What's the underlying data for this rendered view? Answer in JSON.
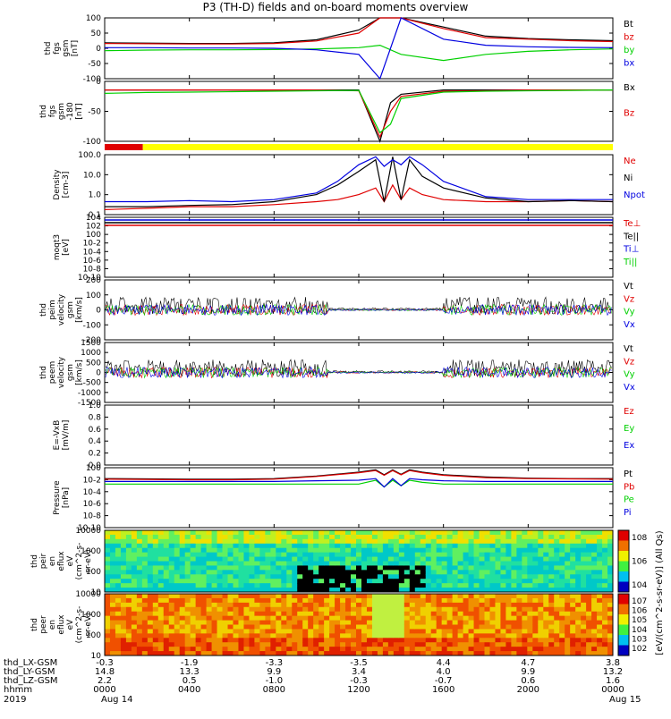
{
  "title": "P3 (TH-D) fields and on-board moments overview",
  "colors": {
    "black": "#000000",
    "red": "#e00000",
    "green": "#00d000",
    "blue": "#0000e0",
    "yellow": "#ffff00"
  },
  "chart_data": [
    {
      "type": "line",
      "panel": "fgs_gsm",
      "ylabel": [
        "thd",
        "fgs",
        "gsm",
        "[nT]"
      ],
      "ylim": [
        -100,
        100
      ],
      "yticks": [
        "100",
        "50",
        "0",
        "-50",
        "-100"
      ],
      "series": [
        {
          "name": "Bt",
          "color": "black"
        },
        {
          "name": "bz",
          "color": "red"
        },
        {
          "name": "by",
          "color": "green"
        },
        {
          "name": "bx",
          "color": "blue"
        }
      ],
      "x_hours": [
        0,
        2,
        4,
        6,
        8,
        10,
        12,
        13,
        14,
        16,
        18,
        20,
        22,
        24
      ],
      "values": {
        "Bt": [
          18,
          17,
          16,
          16,
          18,
          28,
          60,
          100,
          100,
          70,
          40,
          32,
          28,
          25
        ],
        "bz": [
          16,
          15,
          14,
          14,
          16,
          24,
          50,
          100,
          100,
          65,
          35,
          30,
          25,
          22
        ],
        "by": [
          -8,
          -6,
          -5,
          -5,
          -4,
          -2,
          2,
          10,
          -20,
          -40,
          -20,
          -10,
          -5,
          -2
        ],
        "bx": [
          2,
          2,
          1,
          1,
          0,
          -5,
          -20,
          -100,
          100,
          30,
          10,
          5,
          3,
          2
        ]
      }
    },
    {
      "type": "line",
      "panel": "fgs_gsm_b",
      "ylabel": [
        "thd",
        "fgs",
        "gsm",
        "-180",
        "[nT]"
      ],
      "ylim": [
        -120,
        20
      ],
      "yticks": [
        "0",
        "-50",
        "-100"
      ],
      "series": [
        {
          "name": "Bx",
          "color": "black"
        },
        {
          "name": "Bz",
          "color": "red"
        }
      ],
      "x_hours": [
        0,
        2,
        4,
        6,
        8,
        10,
        12,
        13,
        13.5,
        14,
        16,
        18,
        20,
        22,
        24
      ],
      "values": {
        "Bx": [
          0,
          0,
          0,
          0,
          0,
          0,
          0,
          -120,
          -30,
          -10,
          0,
          0,
          0,
          0,
          0
        ],
        "Bz": [
          0,
          0,
          0,
          0,
          0,
          0,
          -2,
          -110,
          -50,
          -15,
          -3,
          -2,
          0,
          0,
          0
        ],
        "green": [
          -8,
          -6,
          -5,
          -4,
          -3,
          -2,
          -1,
          -100,
          -80,
          -20,
          -5,
          -3,
          -2,
          -1,
          0
        ]
      }
    },
    {
      "type": "bar",
      "panel": "mode_bar",
      "segments": [
        {
          "from": 0,
          "to": 1.8,
          "color": "red"
        },
        {
          "from": 1.8,
          "to": 24,
          "color": "yellow"
        }
      ]
    },
    {
      "type": "line",
      "panel": "density",
      "ylabel": [
        "Density",
        "[cm-3]"
      ],
      "yscale": "log",
      "ylim": [
        0.05,
        200
      ],
      "yticks": [
        "100.0",
        "10.0",
        "1.0",
        "0.1"
      ],
      "series": [
        {
          "name": "Ne",
          "color": "red"
        },
        {
          "name": "Ni",
          "color": "black"
        },
        {
          "name": "Npot",
          "color": "blue"
        }
      ],
      "x_hours": [
        0,
        2,
        4,
        6,
        8,
        10,
        11,
        12,
        12.8,
        13.2,
        13.6,
        14,
        14.4,
        15,
        16,
        18,
        20,
        22,
        24
      ],
      "values": {
        "Ne": [
          0.1,
          0.12,
          0.15,
          0.15,
          0.2,
          0.3,
          0.4,
          0.8,
          2,
          0.3,
          3,
          0.4,
          2,
          0.8,
          0.4,
          0.3,
          0.3,
          0.35,
          0.3
        ],
        "Ni": [
          0.15,
          0.15,
          0.18,
          0.2,
          0.3,
          0.8,
          3,
          20,
          100,
          0.3,
          150,
          0.4,
          100,
          10,
          2,
          0.5,
          0.3,
          0.35,
          0.3
        ],
        "Npot": [
          0.3,
          0.3,
          0.35,
          0.3,
          0.4,
          1,
          5,
          50,
          150,
          40,
          100,
          50,
          150,
          50,
          5,
          0.6,
          0.4,
          0.4,
          0.4
        ]
      }
    },
    {
      "type": "line",
      "panel": "temperature",
      "ylabel": [
        "moqt3",
        "[eV]"
      ],
      "yscale": "log",
      "ylim": [
        1e-10,
        10000.0
      ],
      "yticks": [
        "10^4",
        "10^2",
        "10^0",
        "10^-2",
        "10^-4",
        "10^-6",
        "10^-8",
        "10^-10"
      ],
      "series": [
        {
          "name": "Te⊥",
          "color": "red"
        },
        {
          "name": "Te||",
          "color": "black"
        },
        {
          "name": "Ti⊥",
          "color": "blue"
        },
        {
          "name": "Ti||",
          "color": "green"
        }
      ]
    },
    {
      "type": "line",
      "panel": "peim_velocity",
      "ylabel": [
        "thd",
        "peim",
        "velocity",
        "gsm",
        "[km/s]"
      ],
      "ylim": [
        -200,
        200
      ],
      "yticks": [
        "200",
        "100",
        "0",
        "-100",
        "-200"
      ],
      "series": [
        {
          "name": "Vt",
          "color": "black"
        },
        {
          "name": "Vz",
          "color": "red"
        },
        {
          "name": "Vy",
          "color": "green"
        },
        {
          "name": "Vx",
          "color": "blue"
        }
      ]
    },
    {
      "type": "line",
      "panel": "peem_velocity",
      "ylabel": [
        "thd",
        "peem",
        "velocity",
        "gsm",
        "[km/s]"
      ],
      "ylim": [
        -1500,
        1500
      ],
      "yticks": [
        "1500",
        "1000",
        "500",
        "0",
        "-500",
        "-1000",
        "-1500"
      ],
      "series": [
        {
          "name": "Vt",
          "color": "black"
        },
        {
          "name": "Vz",
          "color": "red"
        },
        {
          "name": "Vy",
          "color": "green"
        },
        {
          "name": "Vx",
          "color": "blue"
        }
      ]
    },
    {
      "type": "line",
      "panel": "efield",
      "ylabel": [
        "E=-VxB",
        "[mV/m]"
      ],
      "ylim": [
        0,
        1
      ],
      "yticks": [
        "1.0",
        "0.8",
        "0.6",
        "0.4",
        "0.2",
        "0.0"
      ],
      "series": [
        {
          "name": "Ez",
          "color": "red"
        },
        {
          "name": "Ey",
          "color": "green"
        },
        {
          "name": "Ex",
          "color": "blue"
        }
      ]
    },
    {
      "type": "line",
      "panel": "pressure",
      "ylabel": [
        "Pressure",
        "[nPa]"
      ],
      "yscale": "log",
      "ylim": [
        1e-10,
        10
      ],
      "yticks": [
        "10^0",
        "10^-2",
        "10^-4",
        "10^-6",
        "10^-8",
        "10^-10"
      ],
      "series": [
        {
          "name": "Pt",
          "color": "black"
        },
        {
          "name": "Pb",
          "color": "red"
        },
        {
          "name": "Pe",
          "color": "green"
        },
        {
          "name": "Pi",
          "color": "blue"
        }
      ],
      "x_hours": [
        0,
        2,
        4,
        6,
        8,
        10,
        12,
        12.8,
        13.2,
        13.6,
        14,
        14.4,
        15,
        16,
        18,
        20,
        22,
        24
      ],
      "values": {
        "Pt": [
          0.1,
          0.09,
          0.08,
          0.08,
          0.1,
          0.3,
          1.5,
          4,
          0.5,
          4,
          0.6,
          4,
          1.5,
          0.5,
          0.2,
          0.12,
          0.1,
          0.1
        ],
        "Pb": [
          0.08,
          0.07,
          0.06,
          0.06,
          0.08,
          0.25,
          1.2,
          3,
          0.4,
          3,
          0.5,
          3,
          1.2,
          0.4,
          0.15,
          0.1,
          0.09,
          0.08
        ],
        "Pe": [
          0.01,
          0.01,
          0.01,
          0.01,
          0.01,
          0.01,
          0.01,
          0.05,
          0.003,
          0.05,
          0.005,
          0.05,
          0.02,
          0.01,
          0.01,
          0.01,
          0.01,
          0.01
        ],
        "Pi": [
          0.03,
          0.03,
          0.03,
          0.03,
          0.03,
          0.04,
          0.05,
          0.1,
          0.003,
          0.1,
          0.005,
          0.1,
          0.06,
          0.04,
          0.03,
          0.03,
          0.03,
          0.03
        ]
      }
    },
    {
      "type": "heatmap",
      "panel": "peir_spec",
      "ylabel": [
        "thd",
        "peir",
        "en",
        "eflux",
        "eV",
        "(cm^2-s-",
        "sr-eV)"
      ],
      "yticks": [
        "10000",
        "1000",
        "100",
        "10"
      ],
      "colorbar_ticks": [
        "10^8",
        "10^6",
        "10^4"
      ]
    },
    {
      "type": "heatmap",
      "panel": "peer_spec",
      "ylabel": [
        "thd",
        "peer",
        "en",
        "eflux",
        "eV",
        "(cm^2-s-",
        "sr-eV)"
      ],
      "yticks": [
        "10000",
        "1000",
        "100",
        "10"
      ],
      "colorbar_ticks": [
        "10^7",
        "10^6",
        "10^5",
        "10^4",
        "10^3",
        "10^2"
      ]
    }
  ],
  "colorbar_label": "[eV/(cm^2-s-sr-eV)] (All Qs)",
  "footer": {
    "labels": [
      "thd_LX-GSM",
      "thd_LY-GSM",
      "thd_LZ-GSM",
      "hhmm",
      "2019"
    ],
    "columns": [
      {
        "lx": "-0.3",
        "ly": "14.8",
        "lz": "2.2",
        "time": "0000",
        "date": "Aug 14"
      },
      {
        "lx": "-1.9",
        "ly": "13.3",
        "lz": "0.5",
        "time": "0400",
        "date": ""
      },
      {
        "lx": "-3.3",
        "ly": "9.9",
        "lz": "-1.0",
        "time": "0800",
        "date": ""
      },
      {
        "lx": "-3.5",
        "ly": "3.4",
        "lz": "-0.3",
        "time": "1200",
        "date": ""
      },
      {
        "lx": "4.4",
        "ly": "4.0",
        "lz": "-0.7",
        "time": "1600",
        "date": ""
      },
      {
        "lx": "4.7",
        "ly": "9.9",
        "lz": "0.6",
        "time": "2000",
        "date": ""
      },
      {
        "lx": "3.8",
        "ly": "13.2",
        "lz": "1.6",
        "time": "0000",
        "date": "Aug 15"
      }
    ]
  }
}
